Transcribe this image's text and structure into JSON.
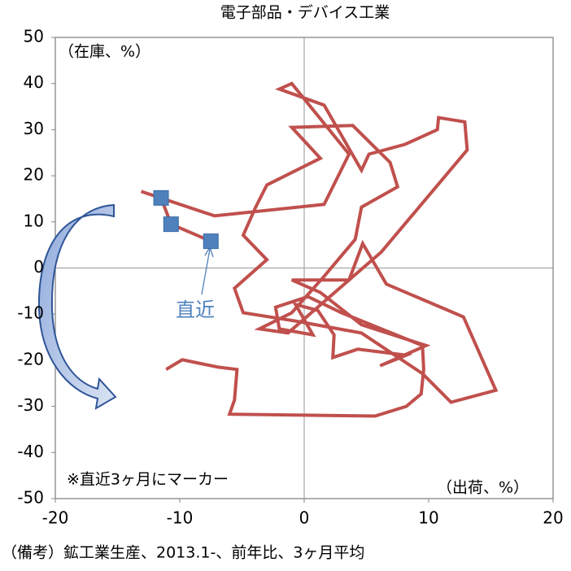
{
  "chart_data": {
    "type": "line",
    "title": "電子部品・デバイス工業",
    "y_label": "（在庫、%）",
    "x_label": "（出荷、%）",
    "annotation": "直近",
    "note": "※直近3ヶ月にマーカー",
    "footer": "（備考）鉱工業生産、2013.1-、前年比、3ヶ月平均",
    "xlim": [
      -20,
      20
    ],
    "ylim": [
      -50,
      50
    ],
    "xticks": [
      -20,
      -10,
      0,
      10,
      20
    ],
    "yticks": [
      -50,
      -40,
      -30,
      -20,
      -10,
      0,
      10,
      20,
      30,
      40,
      50
    ],
    "marker_last_n": 3,
    "marker_color": "#4f81bd",
    "series": [
      {
        "color": "#c0504d",
        "x": [
          -11.1,
          -9.8,
          -6.9,
          -5.4,
          -5.6,
          -6.0,
          5.7,
          8.2,
          9.4,
          9.6,
          9.5,
          6.2,
          3.0,
          0.3,
          -2.3,
          -2.0,
          0.7,
          -0.7,
          1.1,
          2.4,
          2.3,
          4.3,
          8.2,
          6.1,
          9.8,
          4.6,
          1.3,
          -1.0,
          3.6,
          4.7,
          6.6,
          12.8,
          15.4,
          11.8,
          9.5,
          4.6,
          -0.7,
          -4.9,
          -5.6,
          -3.0,
          -4.9,
          -3.9,
          -3.0,
          1.3,
          -1.0,
          3.9,
          6.9,
          7.5,
          4.6,
          4.1,
          1.6,
          -1.0,
          -3.6,
          -1.3,
          6.2,
          13.1,
          12.9,
          10.8,
          10.7,
          8.1,
          5.2,
          4.6,
          1.6,
          -2.0,
          -1.0,
          3.6,
          1.6,
          -7.2,
          -13.1,
          -11.5,
          -10.7,
          -7.5
        ],
        "y": [
          -22.0,
          -19.9,
          -21.5,
          -22.0,
          -28.6,
          -31.7,
          -32.1,
          -30.0,
          -27.3,
          -22.0,
          -16.8,
          -13.2,
          -9.7,
          -6.2,
          -8.5,
          -13.2,
          -14.5,
          -7.9,
          -9.2,
          -14.5,
          -19.4,
          -17.6,
          -18.9,
          -21.2,
          -16.8,
          -12.3,
          -5.3,
          -2.6,
          -2.6,
          5.3,
          -3.5,
          -10.6,
          -26.5,
          -29.1,
          -22.9,
          -14.1,
          -11.5,
          -9.7,
          -4.4,
          1.8,
          7.1,
          13.2,
          18.0,
          23.8,
          30.5,
          30.9,
          22.9,
          17.6,
          13.2,
          6.2,
          -1.8,
          -9.7,
          -13.2,
          -14.1,
          3.5,
          25.6,
          31.7,
          32.6,
          30.0,
          26.8,
          24.7,
          21.2,
          35.3,
          38.8,
          40.0,
          24.7,
          13.8,
          11.3,
          16.6,
          15.2,
          9.5,
          5.8
        ]
      }
    ]
  }
}
